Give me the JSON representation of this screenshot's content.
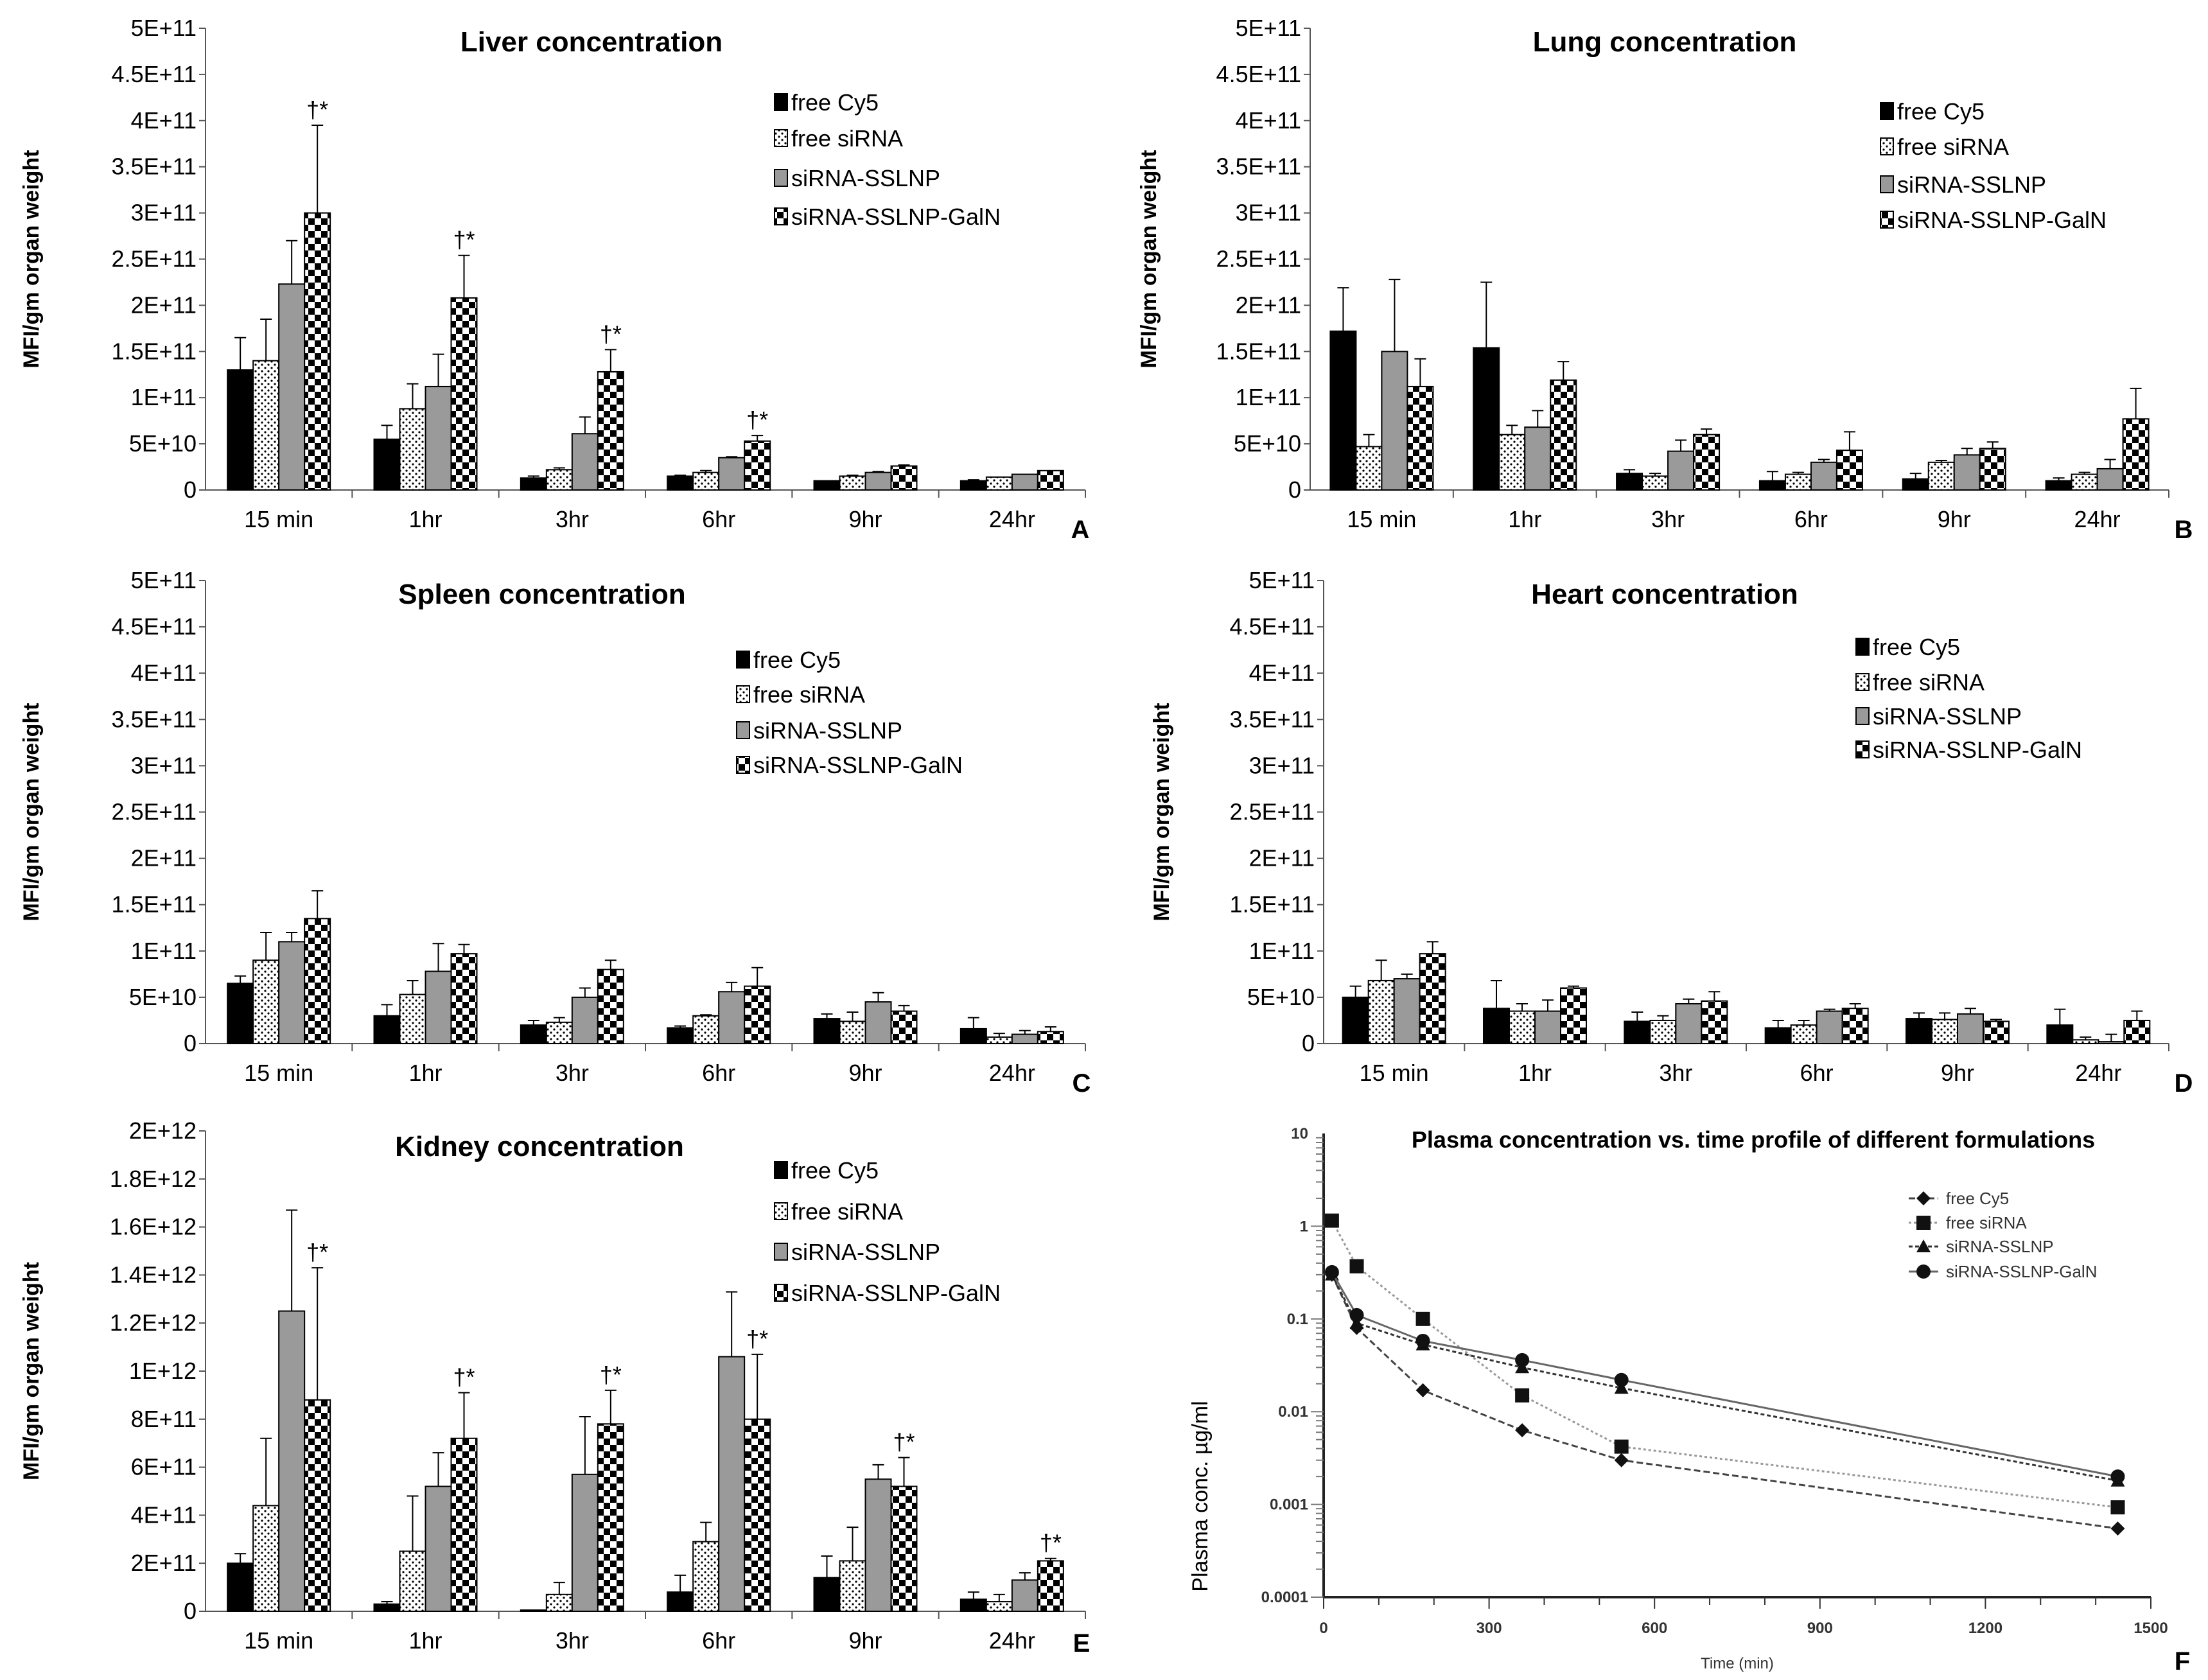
{
  "chart_data": [
    {
      "panel": "A",
      "type": "bar",
      "title": "Liver  concentration",
      "ylabel": "MFI/gm organ weight",
      "letter": "A",
      "ylim": [
        0,
        500000000000.0
      ],
      "yticks": [
        "0",
        "5E+10",
        "1E+11",
        "1.5E+11",
        "2E+11",
        "2.5E+11",
        "3E+11",
        "3.5E+11",
        "4E+11",
        "4.5E+11",
        "5E+11"
      ],
      "categories": [
        "15 min",
        "1hr",
        "3hr",
        "6hr",
        "9hr",
        "24hr"
      ],
      "series": [
        {
          "name": "free Cy5",
          "values": [
            130000000000.0,
            55000000000.0,
            13000000000.0,
            15000000000.0,
            10000000000.0,
            10000000000.0
          ],
          "errors": [
            35000000000.0,
            15000000000.0,
            2000000000.0,
            1000000000.0,
            0,
            1000000000.0
          ]
        },
        {
          "name": "free siRNA",
          "values": [
            140000000000.0,
            88000000000.0,
            22000000000.0,
            19000000000.0,
            15000000000.0,
            14000000000.0
          ],
          "errors": [
            45000000000.0,
            27000000000.0,
            2000000000.0,
            2000000000.0,
            1000000000.0,
            0
          ]
        },
        {
          "name": "siRNA-SSLNP",
          "values": [
            223000000000.0,
            112000000000.0,
            61000000000.0,
            35000000000.0,
            19000000000.0,
            17000000000.0
          ],
          "errors": [
            47000000000.0,
            35000000000.0,
            18000000000.0,
            1000000000.0,
            1000000000.0,
            0
          ]
        },
        {
          "name": "siRNA-SSLNP-GalN",
          "values": [
            300000000000.0,
            208000000000.0,
            128000000000.0,
            53000000000.0,
            26000000000.0,
            21000000000.0
          ],
          "errors": [
            95000000000.0,
            46000000000.0,
            24000000000.0,
            6000000000.0,
            1000000000.0,
            0
          ]
        }
      ],
      "annotation": "†*",
      "annotated": [
        0,
        1,
        2,
        3
      ]
    },
    {
      "panel": "B",
      "type": "bar",
      "title": "Lung concentration",
      "ylabel": "MFI/gm organ weight",
      "letter": "B",
      "ylim": [
        0,
        500000000000.0
      ],
      "yticks": [
        "0",
        "5E+10",
        "1E+11",
        "1.5E+11",
        "2E+11",
        "2.5E+11",
        "3E+11",
        "3.5E+11",
        "4E+11",
        "4.5E+11",
        "5E+11"
      ],
      "categories": [
        "15  min",
        "1hr",
        "3hr",
        "6hr",
        "9hr",
        "24hr"
      ],
      "series": [
        {
          "name": "free Cy5",
          "values": [
            172000000000.0,
            154000000000.0,
            18000000000.0,
            10000000000.0,
            12000000000.0,
            10000000000.0
          ],
          "errors": [
            47000000000.0,
            71000000000.0,
            4000000000.0,
            10000000000.0,
            6000000000.0,
            3000000000.0
          ]
        },
        {
          "name": "free siRNA",
          "values": [
            47000000000.0,
            60000000000.0,
            15000000000.0,
            17000000000.0,
            30000000000.0,
            17000000000.0
          ],
          "errors": [
            13000000000.0,
            10000000000.0,
            3000000000.0,
            2000000000.0,
            2000000000.0,
            2000000000.0
          ]
        },
        {
          "name": "siRNA-SSLNP",
          "values": [
            150000000000.0,
            68000000000.0,
            42000000000.0,
            30000000000.0,
            38000000000.0,
            23000000000.0
          ],
          "errors": [
            78000000000.0,
            18000000000.0,
            12000000000.0,
            3000000000.0,
            7000000000.0,
            10000000000.0
          ]
        },
        {
          "name": "siRNA-SSLNP-GalN",
          "values": [
            112000000000.0,
            119000000000.0,
            60000000000.0,
            43000000000.0,
            45000000000.0,
            77000000000.0
          ],
          "errors": [
            30000000000.0,
            20000000000.0,
            6000000000.0,
            20000000000.0,
            7000000000.0,
            33000000000.0
          ]
        }
      ],
      "annotation": "",
      "annotated": []
    },
    {
      "panel": "C",
      "type": "bar",
      "title": "Spleen concentration",
      "ylabel": "MFI/gm organ weight",
      "letter": "C",
      "ylim": [
        0,
        500000000000.0
      ],
      "yticks": [
        "0",
        "5E+10",
        "1E+11",
        "1.5E+11",
        "2E+11",
        "2.5E+11",
        "3E+11",
        "3.5E+11",
        "4E+11",
        "4.5E+11",
        "5E+11"
      ],
      "categories": [
        "15 min",
        "1hr",
        "3hr",
        "6hr",
        "9hr",
        "24hr"
      ],
      "series": [
        {
          "name": "free Cy5",
          "values": [
            65000000000.0,
            30000000000.0,
            20000000000.0,
            17000000000.0,
            27000000000.0,
            16000000000.0
          ],
          "errors": [
            8000000000.0,
            12000000000.0,
            5000000000.0,
            2000000000.0,
            5000000000.0,
            12000000000.0
          ]
        },
        {
          "name": "free siRNA",
          "values": [
            90000000000.0,
            53000000000.0,
            23000000000.0,
            30000000000.0,
            24000000000.0,
            7000000000.0
          ],
          "errors": [
            30000000000.0,
            15000000000.0,
            5000000000.0,
            1000000000.0,
            10000000000.0,
            4000000000.0
          ]
        },
        {
          "name": "siRNA-SSLNP",
          "values": [
            110000000000.0,
            78000000000.0,
            50000000000.0,
            56000000000.0,
            45000000000.0,
            10000000000.0
          ],
          "errors": [
            10000000000.0,
            30000000000.0,
            10000000000.0,
            10000000000.0,
            10000000000.0,
            4000000000.0
          ]
        },
        {
          "name": "siRNA-SSLNP-GalN",
          "values": [
            135000000000.0,
            97000000000.0,
            80000000000.0,
            62000000000.0,
            35000000000.0,
            13000000000.0
          ],
          "errors": [
            30000000000.0,
            10000000000.0,
            10000000000.0,
            20000000000.0,
            6000000000.0,
            5000000000.0
          ]
        }
      ],
      "annotation": "",
      "annotated": []
    },
    {
      "panel": "D",
      "type": "bar",
      "title": "Heart concentration",
      "ylabel": "MFI/gm organ weight",
      "letter": "D",
      "ylim": [
        0,
        500000000000.0
      ],
      "yticks": [
        "0",
        "5E+10",
        "1E+11",
        "1.5E+11",
        "2E+11",
        "2.5E+11",
        "3E+11",
        "3.5E+11",
        "4E+11",
        "4.5E+11",
        "5E+11"
      ],
      "categories": [
        "15  min",
        "1hr",
        "3hr",
        "6hr",
        "9hr",
        "24hr"
      ],
      "series": [
        {
          "name": "free Cy5",
          "values": [
            50000000000.0,
            38000000000.0,
            24000000000.0,
            17000000000.0,
            27000000000.0,
            20000000000.0
          ],
          "errors": [
            12000000000.0,
            30000000000.0,
            10000000000.0,
            8000000000.0,
            6000000000.0,
            17000000000.0
          ]
        },
        {
          "name": "free siRNA",
          "values": [
            68000000000.0,
            35000000000.0,
            25000000000.0,
            20000000000.0,
            26000000000.0,
            4000000000.0
          ],
          "errors": [
            22000000000.0,
            8000000000.0,
            5000000000.0,
            5000000000.0,
            7000000000.0,
            3000000000.0
          ]
        },
        {
          "name": "siRNA-SSLNP",
          "values": [
            70000000000.0,
            35000000000.0,
            43000000000.0,
            35000000000.0,
            32000000000.0,
            2000000000.0
          ],
          "errors": [
            5000000000.0,
            12000000000.0,
            5000000000.0,
            2000000000.0,
            6000000000.0,
            8000000000.0
          ]
        },
        {
          "name": "siRNA-SSLNP-GalN",
          "values": [
            97000000000.0,
            60000000000.0,
            46000000000.0,
            38000000000.0,
            24000000000.0,
            25000000000.0
          ],
          "errors": [
            13000000000.0,
            2000000000.0,
            10000000000.0,
            5000000000.0,
            2000000000.0,
            10000000000.0
          ]
        }
      ],
      "annotation": "",
      "annotated": []
    },
    {
      "panel": "E",
      "type": "bar",
      "title": "Kidney concentration",
      "ylabel": "MFI/gm organ weight",
      "letter": "E",
      "ylim": [
        0,
        2000000000000.0
      ],
      "yticks": [
        "0",
        "2E+11",
        "4E+11",
        "6E+11",
        "8E+11",
        "1E+12",
        "1.2E+12",
        "1.4E+12",
        "1.6E+12",
        "1.8E+12",
        "2E+12"
      ],
      "categories": [
        "15 min",
        "1hr",
        "3hr",
        "6hr",
        "9hr",
        "24hr"
      ],
      "series": [
        {
          "name": "free Cy5",
          "values": [
            200000000000.0,
            30000000000.0,
            5000000000.0,
            80000000000.0,
            140000000000.0,
            50000000000.0
          ],
          "errors": [
            40000000000.0,
            10000000000.0,
            0,
            70000000000.0,
            90000000000.0,
            30000000000.0
          ]
        },
        {
          "name": "free siRNA",
          "values": [
            440000000000.0,
            250000000000.0,
            70000000000.0,
            290000000000.0,
            210000000000.0,
            40000000000.0
          ],
          "errors": [
            280000000000.0,
            230000000000.0,
            50000000000.0,
            80000000000.0,
            140000000000.0,
            30000000000.0
          ]
        },
        {
          "name": "siRNA-SSLNP",
          "values": [
            1250000000000.0,
            520000000000.0,
            570000000000.0,
            1060000000000.0,
            550000000000.0,
            130000000000.0
          ],
          "errors": [
            420000000000.0,
            140000000000.0,
            240000000000.0,
            270000000000.0,
            60000000000.0,
            30000000000.0
          ]
        },
        {
          "name": "siRNA-SSLNP-GalN",
          "values": [
            880000000000.0,
            720000000000.0,
            780000000000.0,
            800000000000.0,
            520000000000.0,
            210000000000.0
          ],
          "errors": [
            550000000000.0,
            190000000000.0,
            140000000000.0,
            270000000000.0,
            120000000000.0,
            10000000000.0
          ]
        }
      ],
      "annotation": "†*",
      "annotated": [
        0,
        1,
        2,
        3,
        4,
        5
      ]
    },
    {
      "panel": "F",
      "type": "line",
      "title": "Plasma concentration vs. time profile of different formulations",
      "xlabel": "Time (min)",
      "ylabel": "Plasma conc. µg/ml",
      "letter": "F",
      "yscale": "log",
      "ylim": [
        0.0001,
        10
      ],
      "xlim": [
        0,
        1500
      ],
      "yticks": [
        "10",
        "1",
        "0.1",
        "0.01",
        "0.001",
        "0.0001"
      ],
      "xticks": [
        "0",
        "300",
        "600",
        "900",
        "1200",
        "1500"
      ],
      "x": [
        15,
        60,
        180,
        360,
        540,
        1440
      ],
      "legend": "top-right",
      "series": [
        {
          "name": "free Cy5",
          "marker": "diamond",
          "values": [
            0.3,
            0.08,
            0.017,
            0.0063,
            0.003,
            0.00055
          ]
        },
        {
          "name": "free siRNA",
          "marker": "square",
          "values": [
            1.15,
            0.37,
            0.1,
            0.015,
            0.0042,
            0.00093
          ]
        },
        {
          "name": "siRNA-SSLNP",
          "marker": "triangle",
          "values": [
            0.3,
            0.09,
            0.053,
            0.03,
            0.018,
            0.0018
          ]
        },
        {
          "name": "siRNA-SSLNP-GalN",
          "marker": "circle",
          "values": [
            0.32,
            0.11,
            0.058,
            0.036,
            0.022,
            0.002
          ]
        }
      ]
    }
  ]
}
